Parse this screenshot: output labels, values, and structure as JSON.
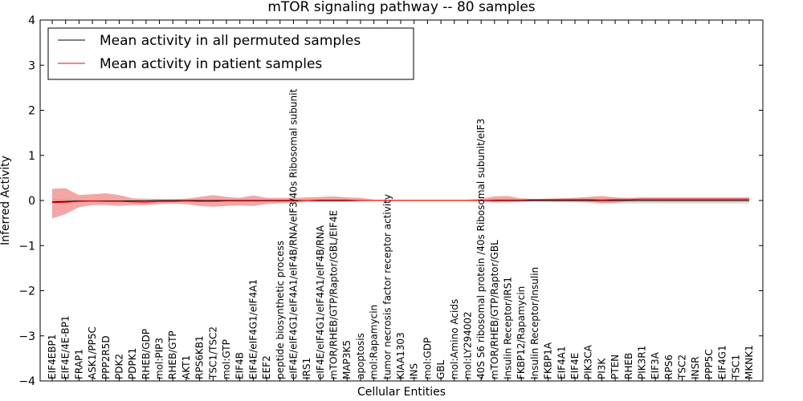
{
  "chart_data": {
    "type": "line",
    "title": "mTOR signaling pathway -- 80 samples",
    "xlabel": "Cellular Entities",
    "ylabel": "Inferred Activity",
    "ylim": [
      -4,
      4
    ],
    "yticks": [
      -4,
      -3,
      -2,
      -1,
      0,
      1,
      2,
      3,
      4
    ],
    "grid": false,
    "legend_position": "top-left",
    "colors": {
      "permuted": "#000000",
      "patient": "#ff0000",
      "patient_band": "#f08080",
      "permuted_band": "#c8c8c8"
    },
    "categories": [
      "EIF4EBP1",
      "EIF4E/4E-BP1",
      "FRAP1",
      "ASK1/PP5C",
      "PPP2R5D",
      "PDK2",
      "PDPK1",
      "RHEB/GDP",
      "mol:PIP3",
      "RHEB/GTP",
      "AKT1",
      "RPS6KB1",
      "TSC1/TSC2",
      "mol:GTP",
      "EIF4B",
      "EIF4E/eIF4G1/eIF4A1",
      "EEF2",
      "peptide biosynthetic process",
      "eIF4E/eIF4G1/eIF4A1/eIF4B/RNA/eIF3/40s Ribosomal subunit",
      "IRS1",
      "eIF4E/eIF4G1/eIF4A1/eIF4B/RNA",
      "mTOR/RHEB/GTP/Raptor/GBL/EIF4E",
      "MAP3K5",
      "apoptosis",
      "mol:Rapamycin",
      "tumor necrosis factor receptor activity",
      "KIAA1303",
      "INS",
      "mol:GDP",
      "GBL",
      "mol:Amino Acids",
      "mol:LY294002",
      "40S S6 ribosomal protein /40s Ribosomal subunit/eIF3",
      "mTOR/RHEB/GTP/Raptor/GBL",
      "Insulin Receptor/IRS1",
      "FKBP12/Rapamycin",
      "Insulin Receptor/Insulin",
      "FKBP1A",
      "EIF4A1",
      "EIF4E",
      "PIK3CA",
      "PI3K",
      "PTEN",
      "RHEB",
      "PIK3R1",
      "EIF3A",
      "RPS6",
      "TSC2",
      "INSR",
      "PPP5C",
      "EIF4G1",
      "TSC1",
      "MKNK1"
    ],
    "series": [
      {
        "name": "Mean activity in all permuted samples",
        "values": [
          -0.03,
          -0.02,
          -0.01,
          -0.01,
          -0.01,
          -0.01,
          -0.01,
          -0.01,
          0,
          0,
          0,
          0,
          0,
          0,
          0,
          0,
          0,
          0,
          0,
          0,
          0,
          0,
          0,
          0,
          0,
          0,
          0,
          0,
          0,
          0,
          0,
          0,
          0,
          0,
          0,
          0,
          0,
          0,
          0,
          0,
          0,
          0,
          0,
          0,
          0,
          0,
          0,
          0,
          0,
          0,
          0,
          0,
          0
        ],
        "lower": [
          -0.06,
          -0.05,
          -0.04,
          -0.03,
          -0.02,
          -0.02,
          -0.02,
          -0.02,
          -0.01,
          -0.01,
          -0.01,
          -0.01,
          -0.01,
          -0.01,
          -0.01,
          -0.01,
          -0.01,
          -0.01,
          -0.01,
          -0.01,
          -0.01,
          -0.01,
          -0.01,
          -0.01,
          -0.01,
          -0.01,
          -0.01,
          -0.01,
          -0.01,
          -0.01,
          -0.01,
          -0.01,
          -0.02,
          -0.02,
          -0.02,
          -0.02,
          -0.02,
          -0.03,
          -0.04,
          -0.05,
          -0.06,
          -0.07,
          -0.07,
          -0.07,
          -0.07,
          -0.07,
          -0.07,
          -0.07,
          -0.07,
          -0.07,
          -0.07,
          -0.07,
          -0.07
        ],
        "upper": [
          0.04,
          0.03,
          0.03,
          0.02,
          0.02,
          0.02,
          0.02,
          0.01,
          0.01,
          0.01,
          0.01,
          0.01,
          0.01,
          0.01,
          0.01,
          0.01,
          0.01,
          0.01,
          0.01,
          0.01,
          0.01,
          0.01,
          0.01,
          0.01,
          0.01,
          0.01,
          0.01,
          0.01,
          0.01,
          0.01,
          0.01,
          0.01,
          0.02,
          0.02,
          0.02,
          0.02,
          0.02,
          0.03,
          0.04,
          0.05,
          0.05,
          0.05,
          0.05,
          0.05,
          0.05,
          0.05,
          0.05,
          0.05,
          0.05,
          0.05,
          0.05,
          0.05,
          0.05
        ]
      },
      {
        "name": "Mean activity in patient samples",
        "values": [
          -0.05,
          -0.04,
          -0.02,
          -0.01,
          -0.02,
          -0.02,
          -0.03,
          -0.04,
          -0.02,
          -0.02,
          -0.01,
          -0.02,
          -0.02,
          -0.01,
          -0.01,
          -0.01,
          -0.01,
          -0.01,
          -0.01,
          0,
          0.01,
          0.01,
          0.01,
          0,
          0,
          0,
          0,
          0,
          0,
          0,
          0,
          0,
          0,
          0.01,
          0.01,
          0.01,
          0.02,
          0.02,
          0.02,
          0.02,
          0.02,
          0.01,
          0.02,
          0.02,
          0.03,
          0.03,
          0.03,
          0.03,
          0.03,
          0.03,
          0.03,
          0.03,
          0.03
        ],
        "lower": [
          -0.4,
          -0.3,
          -0.15,
          -0.1,
          -0.1,
          -0.12,
          -0.1,
          -0.1,
          -0.08,
          -0.07,
          -0.08,
          -0.12,
          -0.14,
          -0.12,
          -0.11,
          -0.12,
          -0.08,
          -0.06,
          -0.05,
          -0.03,
          -0.03,
          -0.03,
          -0.03,
          -0.02,
          -0.01,
          -0.01,
          -0.01,
          -0.01,
          -0.01,
          -0.01,
          -0.01,
          -0.01,
          -0.02,
          -0.05,
          -0.04,
          -0.03,
          -0.02,
          -0.02,
          -0.02,
          -0.02,
          -0.03,
          -0.06,
          -0.05,
          -0.02,
          -0.02,
          -0.02,
          -0.02,
          -0.02,
          -0.02,
          -0.02,
          -0.02,
          -0.02,
          -0.02
        ],
        "upper": [
          0.26,
          0.27,
          0.12,
          0.14,
          0.16,
          0.12,
          0.05,
          0.04,
          0.03,
          0.03,
          0.04,
          0.08,
          0.12,
          0.08,
          0.06,
          0.11,
          0.06,
          0.06,
          0.06,
          0.07,
          0.08,
          0.09,
          0.07,
          0.06,
          0.02,
          0.02,
          0.02,
          0.02,
          0.02,
          0.02,
          0.02,
          0.02,
          0.04,
          0.09,
          0.1,
          0.05,
          0.03,
          0.04,
          0.05,
          0.06,
          0.08,
          0.1,
          0.07,
          0.06,
          0.07,
          0.07,
          0.07,
          0.07,
          0.07,
          0.07,
          0.07,
          0.07,
          0.07
        ]
      }
    ]
  }
}
